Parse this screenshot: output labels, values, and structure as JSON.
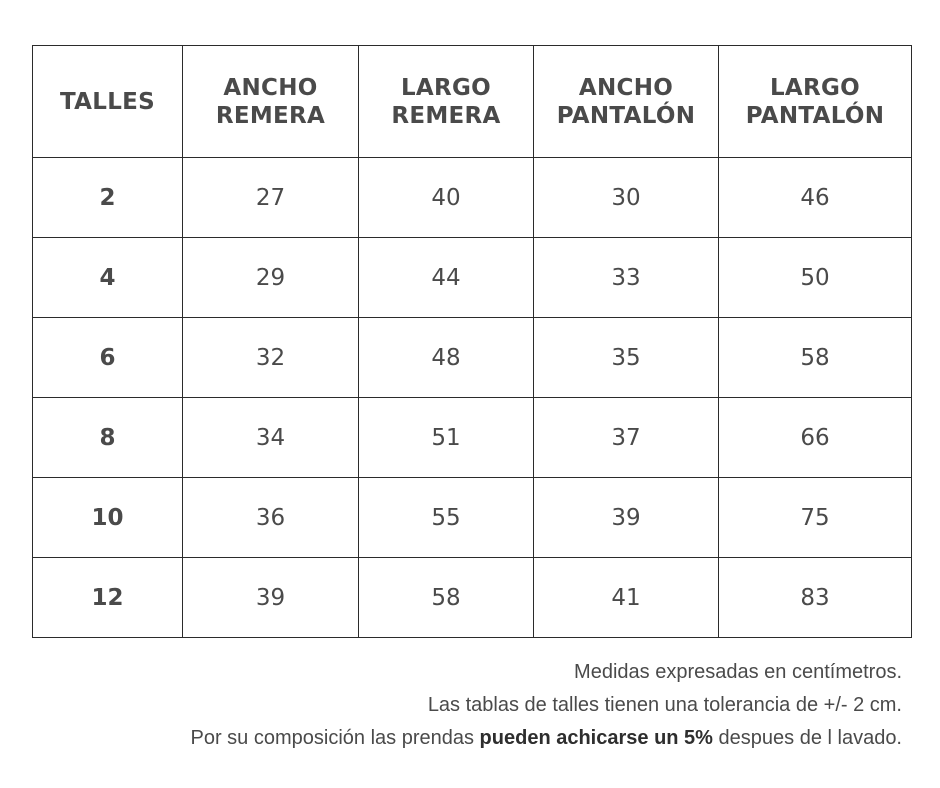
{
  "table": {
    "headers": [
      [
        "TALLES"
      ],
      [
        "ANCHO",
        "REMERA"
      ],
      [
        "LARGO",
        "REMERA"
      ],
      [
        "ANCHO",
        "PANTALÓN"
      ],
      [
        "LARGO",
        "PANTALÓN"
      ]
    ],
    "rows": [
      [
        "2",
        "27",
        "40",
        "30",
        "46"
      ],
      [
        "4",
        "29",
        "44",
        "33",
        "50"
      ],
      [
        "6",
        "32",
        "48",
        "35",
        "58"
      ],
      [
        "8",
        "34",
        "51",
        "37",
        "66"
      ],
      [
        "10",
        "36",
        "55",
        "39",
        "75"
      ],
      [
        "12",
        "39",
        "58",
        "41",
        "83"
      ]
    ]
  },
  "notes": {
    "line1": "Medidas expresadas en centímetros.",
    "line2": "Las tablas de talles tienen una tolerancia de +/- 2 cm.",
    "line3_pre": "Por su composición las prendas ",
    "line3_bold": "pueden achicarse un 5%",
    "line3_post": " despues de l lavado."
  }
}
